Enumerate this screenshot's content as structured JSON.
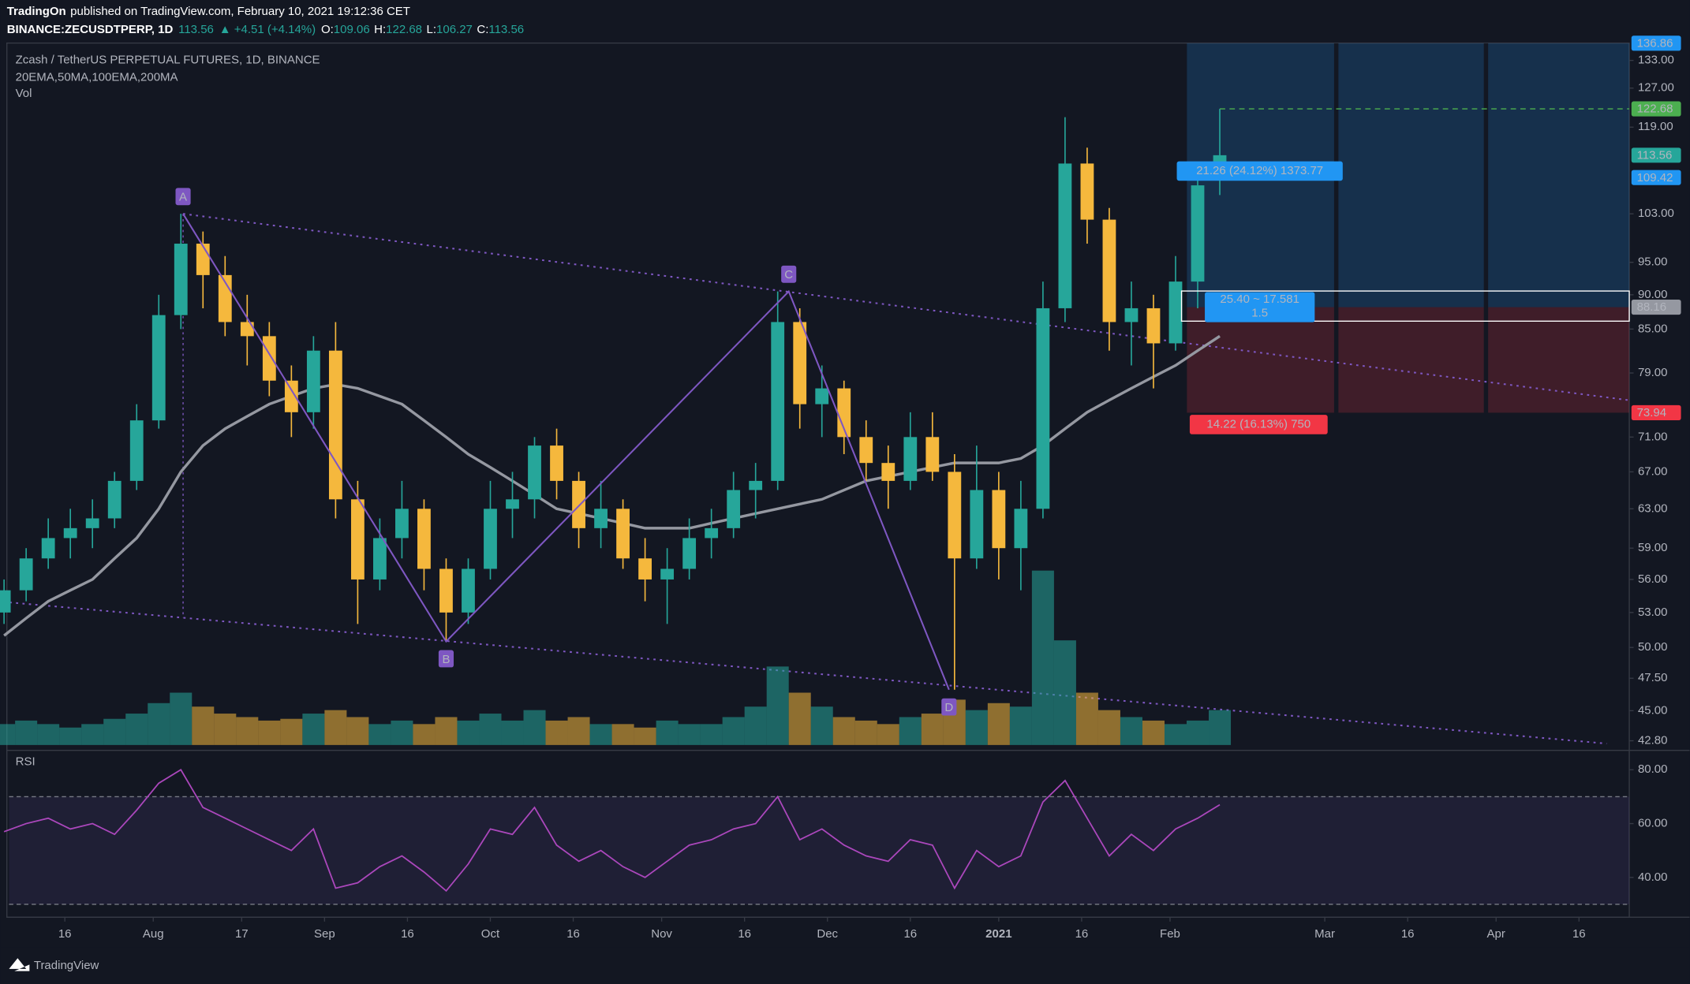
{
  "header": {
    "publisher": "TradingOn",
    "published": "published on TradingView.com, February 10, 2021 19:12:36 CET",
    "symbol": "BINANCE:ZECUSDTPERP, 1D",
    "change": "▲ +4.51 (+4.14%)",
    "ohlc_labels": [
      "O:",
      "H:",
      "L:",
      "C:"
    ]
  },
  "footer": {
    "brand": "TradingView"
  },
  "chart_data": [
    {
      "type": "candlestick",
      "title": "Zcash / TetherUS PERPETUAL FUTURES, 1D, BINANCE",
      "subtitle": "20EMA,50MA,100EMA,200MA",
      "volume_label": "Vol",
      "x": [
        -11,
        -7,
        -3,
        1,
        5,
        9,
        13,
        17,
        21,
        25,
        29,
        33,
        37,
        41,
        45,
        49,
        53,
        57,
        61,
        65,
        69,
        73,
        77,
        81,
        85,
        89,
        93,
        97,
        101,
        105,
        109,
        113,
        117,
        121,
        125,
        129,
        133,
        137,
        141,
        145,
        149,
        153,
        157,
        161,
        165,
        169,
        173,
        177,
        181,
        185,
        189,
        193,
        197,
        201,
        205,
        209
      ],
      "open": [
        53,
        55,
        58,
        60,
        61,
        62,
        66,
        73,
        87,
        98,
        93,
        86,
        84,
        78,
        74,
        82,
        64,
        56,
        60,
        63,
        57,
        53,
        57,
        63,
        64,
        70,
        66,
        61,
        63,
        58,
        56,
        57,
        60,
        61,
        65,
        66,
        86,
        75,
        77,
        71,
        68,
        66,
        71,
        67,
        58,
        65,
        59,
        63,
        88,
        112,
        102,
        86,
        88,
        83,
        92,
        109.06
      ],
      "high": [
        56,
        59,
        62,
        63,
        64,
        67,
        75,
        90,
        103,
        100,
        96,
        90,
        86,
        80,
        84,
        86,
        66,
        62,
        66,
        64,
        58,
        58,
        66,
        67,
        71,
        72,
        67,
        66,
        64,
        60,
        59,
        62,
        63,
        67,
        68,
        90.5,
        88,
        80,
        78,
        73,
        70,
        74,
        74,
        69,
        70,
        67,
        66,
        92,
        121,
        115,
        104,
        92,
        90,
        96,
        110,
        122.68
      ],
      "low": [
        52,
        54,
        57,
        58,
        59,
        61,
        65,
        72,
        85,
        88,
        84,
        80,
        76,
        71,
        72,
        62,
        52,
        55,
        58,
        55,
        50.5,
        52,
        56,
        60,
        62,
        64,
        59,
        59,
        57,
        54,
        52,
        56,
        58,
        60,
        62,
        65,
        72,
        71,
        69,
        66,
        63,
        65,
        66,
        46.6,
        57,
        56,
        55,
        62,
        86,
        98,
        82,
        80,
        77,
        82,
        88,
        106.27
      ],
      "close": [
        55,
        58,
        60,
        61,
        62,
        66,
        73,
        87,
        98,
        93,
        86,
        84,
        78,
        74,
        82,
        64,
        56,
        60,
        63,
        57,
        53,
        57,
        63,
        64,
        70,
        66,
        61,
        63,
        58,
        56,
        57,
        60,
        61,
        65,
        66,
        86,
        75,
        77,
        71,
        68,
        66,
        71,
        67,
        58,
        65,
        59,
        63,
        88,
        112,
        102,
        86,
        88,
        83,
        92,
        108,
        113.56
      ],
      "up_color": "#26a69a",
      "down_color": "#f5b83d",
      "volume": [
        12,
        14,
        12,
        10,
        12,
        15,
        18,
        24,
        30,
        22,
        18,
        16,
        14,
        15,
        18,
        20,
        16,
        12,
        14,
        12,
        16,
        14,
        18,
        14,
        20,
        14,
        16,
        12,
        12,
        10,
        14,
        12,
        12,
        16,
        22,
        45,
        30,
        22,
        16,
        14,
        12,
        16,
        18,
        26,
        20,
        24,
        22,
        100,
        60,
        30,
        20,
        16,
        14,
        12,
        14,
        20
      ],
      "ma": {
        "color": "#9598a1",
        "values": [
          51,
          52.5,
          54,
          55,
          56,
          58,
          60,
          63,
          67,
          70,
          72,
          73.5,
          75,
          76,
          77,
          77.5,
          77,
          76,
          75,
          73,
          71,
          69,
          67.5,
          66,
          64.5,
          63,
          62.5,
          62,
          61.5,
          61,
          61,
          61,
          61.5,
          62,
          62.5,
          63,
          63.5,
          64,
          65,
          66,
          66.5,
          67,
          67.5,
          68,
          68,
          68,
          68.5,
          70,
          72,
          74,
          75.5,
          77,
          78.5,
          80,
          82,
          84
        ]
      },
      "xlim": [
        -10.1,
        283.1
      ],
      "xticks": [
        {
          "value": 0,
          "label": "16"
        },
        {
          "value": 16,
          "label": "Aug"
        },
        {
          "value": 32,
          "label": "17"
        },
        {
          "value": 47,
          "label": "Sep"
        },
        {
          "value": 62,
          "label": "16"
        },
        {
          "value": 77,
          "label": "Oct"
        },
        {
          "value": 92,
          "label": "16"
        },
        {
          "value": 108,
          "label": "Nov"
        },
        {
          "value": 123,
          "label": "16"
        },
        {
          "value": 138,
          "label": "Dec"
        },
        {
          "value": 153,
          "label": "16"
        },
        {
          "value": 169,
          "label": "2021"
        },
        {
          "value": 184,
          "label": "16"
        },
        {
          "value": 200,
          "label": "Feb"
        },
        {
          "value": 228,
          "label": "Mar"
        },
        {
          "value": 243,
          "label": "16"
        },
        {
          "value": 259,
          "label": "Apr"
        },
        {
          "value": 274,
          "label": "16"
        }
      ],
      "ylim": [
        42.5,
        136.9
      ],
      "log_scale": true,
      "yticks": [
        {
          "value": 42.8,
          "label": "42.80"
        },
        {
          "value": 45,
          "label": "45.00"
        },
        {
          "value": 47.5,
          "label": "47.50"
        },
        {
          "value": 50,
          "label": "50.00"
        },
        {
          "value": 53,
          "label": "53.00"
        },
        {
          "value": 56,
          "label": "56.00"
        },
        {
          "value": 59,
          "label": "59.00"
        },
        {
          "value": 63,
          "label": "63.00"
        },
        {
          "value": 67,
          "label": "67.00"
        },
        {
          "value": 71,
          "label": "71.00"
        },
        {
          "value": 79,
          "label": "79.00"
        },
        {
          "value": 85,
          "label": "85.00"
        },
        {
          "value": 90,
          "label": "90.00"
        },
        {
          "value": 95,
          "label": "95.00"
        },
        {
          "value": 103,
          "label": "103.00"
        },
        {
          "value": 119,
          "label": "119.00"
        },
        {
          "value": 127,
          "label": "127.00"
        },
        {
          "value": 133,
          "label": "133.00"
        }
      ],
      "price_tags": [
        {
          "value": 136.86,
          "color": "#2196f3"
        },
        {
          "value": 122.68,
          "color": "#4caf50"
        },
        {
          "value": 113.56,
          "color": "#26a69a"
        },
        {
          "value": 109.42,
          "color": "#2196f3"
        },
        {
          "value": 88.16,
          "color": "#9598a1"
        },
        {
          "value": 73.94,
          "color": "#f23645"
        }
      ],
      "position": {
        "profit_label": "21.26 (24.12%) 1373.77",
        "loss_label": "14.22 (16.13%) 750",
        "range_label": "25.40 ~ 17.581",
        "ratio": 1.5
      },
      "pattern": {
        "labels": [
          "A",
          "B",
          "C",
          "D"
        ],
        "x": [
          21.4,
          69,
          131,
          160
        ],
        "y": [
          103,
          50.5,
          90.5,
          46.6
        ],
        "color": "#7e57c2"
      },
      "channel": {
        "upper": {
          "x": [
            21.4,
            283
          ],
          "y": [
            103,
            75.5
          ]
        },
        "lower": {
          "x": [
            -10,
            279
          ],
          "y": [
            53.9,
            42.6
          ]
        }
      }
    },
    {
      "type": "line",
      "title": "RSI",
      "x": [
        -11,
        -7,
        -3,
        1,
        5,
        9,
        13,
        17,
        21,
        25,
        29,
        33,
        37,
        41,
        45,
        49,
        53,
        57,
        61,
        65,
        69,
        73,
        77,
        81,
        85,
        89,
        93,
        97,
        101,
        105,
        109,
        113,
        117,
        121,
        125,
        129,
        133,
        137,
        141,
        145,
        149,
        153,
        157,
        161,
        165,
        169,
        173,
        177,
        181,
        185,
        189,
        193,
        197,
        201,
        205,
        209
      ],
      "values": [
        57,
        60,
        62,
        58,
        60,
        56,
        65,
        75,
        80,
        66,
        62,
        58,
        54,
        50,
        58,
        36,
        38,
        44,
        48,
        42,
        35,
        45,
        58,
        56,
        66,
        52,
        46,
        50,
        44,
        40,
        46,
        52,
        54,
        58,
        60,
        70,
        54,
        58,
        52,
        48,
        46,
        54,
        52,
        36,
        50,
        44,
        48,
        68,
        76,
        62,
        48,
        56,
        50,
        58,
        62,
        67
      ],
      "color": "#ab47bc",
      "ylim": [
        26,
        86
      ],
      "levels": [
        30,
        70
      ],
      "yticks": [
        {
          "value": 40,
          "label": "40.00"
        },
        {
          "value": 60,
          "label": "60.00"
        },
        {
          "value": 80,
          "label": "80.00"
        }
      ]
    }
  ]
}
